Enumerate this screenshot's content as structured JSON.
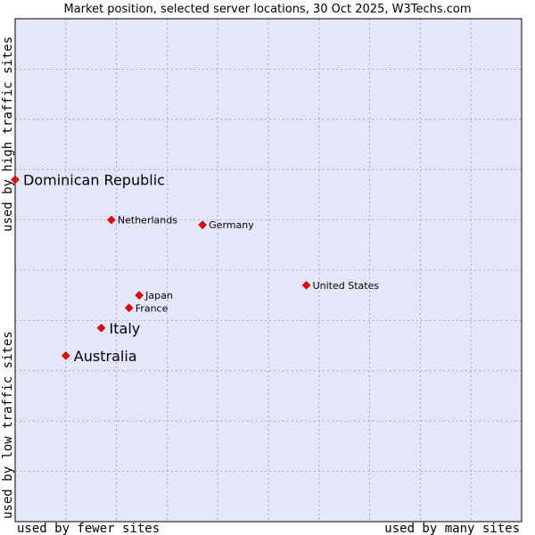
{
  "chart_data": {
    "type": "scatter",
    "title": "Market position, selected server locations, 30 Oct 2025, W3Techs.com",
    "xlabel_low": "used by fewer sites",
    "xlabel_high": "used by many sites",
    "ylabel_low": "used by low traffic sites",
    "ylabel_high": "used by high traffic sites",
    "xlim": [
      0,
      10
    ],
    "ylim": [
      0,
      10
    ],
    "grid": true,
    "colors": {
      "plot_bg": "#e6e6fa",
      "grid": "#9a9ab0",
      "border": "#000000",
      "marker": "#ff0000",
      "marker_stroke": "#aa0000"
    },
    "points": [
      {
        "name": "Dominican Republic",
        "x": 0.0,
        "y": 6.8,
        "size": "large"
      },
      {
        "name": "Netherlands",
        "x": 1.9,
        "y": 6.0,
        "size": "small"
      },
      {
        "name": "Germany",
        "x": 3.7,
        "y": 5.9,
        "size": "small"
      },
      {
        "name": "United States",
        "x": 5.75,
        "y": 4.7,
        "size": "small"
      },
      {
        "name": "Japan",
        "x": 2.45,
        "y": 4.5,
        "size": "small"
      },
      {
        "name": "France",
        "x": 2.25,
        "y": 4.25,
        "size": "small"
      },
      {
        "name": "Italy",
        "x": 1.7,
        "y": 3.85,
        "size": "large"
      },
      {
        "name": "Australia",
        "x": 1.0,
        "y": 3.3,
        "size": "large"
      }
    ]
  }
}
